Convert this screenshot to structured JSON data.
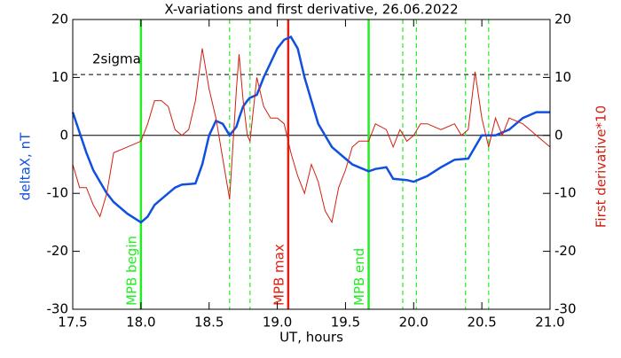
{
  "chart_data": {
    "type": "line",
    "title": "X-variations and first derivative, 26.06.2022",
    "xlabel": "UT, hours",
    "ylabel": "deltaX, nT",
    "y2label": "First derivative*10",
    "x": [
      17.5,
      17.55,
      17.6,
      17.65,
      17.7,
      17.75,
      17.8,
      17.9,
      18.0,
      18.05,
      18.1,
      18.15,
      18.2,
      18.25,
      18.3,
      18.35,
      18.4,
      18.45,
      18.5,
      18.55,
      18.6,
      18.65,
      18.7,
      18.72,
      18.75,
      18.78,
      18.8,
      18.85,
      18.9,
      18.95,
      19.0,
      19.05,
      19.1,
      19.15,
      19.2,
      19.25,
      19.3,
      19.35,
      19.4,
      19.45,
      19.5,
      19.55,
      19.6,
      19.67,
      19.72,
      19.8,
      19.85,
      19.9,
      19.95,
      20.0,
      20.05,
      20.1,
      20.2,
      20.3,
      20.35,
      20.4,
      20.45,
      20.5,
      20.55,
      20.6,
      20.65,
      20.7,
      20.8,
      20.9,
      21.0
    ],
    "series": [
      {
        "name": "deltaX",
        "color": "#1050e0",
        "values": [
          4,
          0.5,
          -3,
          -6,
          -8,
          -10,
          -11.5,
          -13.5,
          -15,
          -14,
          -12,
          -11,
          -10,
          -9,
          -8.5,
          -8.4,
          -8.3,
          -5,
          0,
          2.5,
          2,
          0,
          1.5,
          3,
          5,
          6,
          6.5,
          7,
          10,
          12.5,
          15,
          16.5,
          17,
          15,
          10,
          6,
          2,
          0,
          -2,
          -3,
          -4,
          -5,
          -5.5,
          -6.2,
          -5.8,
          -5.5,
          -7.5,
          -7.6,
          -7.7,
          -8,
          -7.5,
          -7,
          -5.5,
          -4.2,
          -4.1,
          -4,
          -2,
          0,
          0,
          0,
          0.5,
          1,
          3,
          4,
          4
        ]
      },
      {
        "name": "derivative",
        "color": "#d02010",
        "axis": "y2",
        "values": [
          -5,
          -9,
          -9,
          -12,
          -14,
          -10,
          -3,
          -2,
          -1,
          2,
          6,
          6,
          5,
          1,
          0,
          1,
          6,
          15,
          8,
          3,
          -4,
          -11,
          8,
          14,
          6,
          0,
          -1,
          10,
          5,
          3,
          3,
          2,
          -3,
          -7,
          -10,
          -5,
          -8,
          -13,
          -15,
          -9,
          -6,
          -2,
          -1,
          -1,
          2,
          1,
          -2,
          1,
          -1,
          0,
          2,
          2,
          1,
          2,
          0,
          1,
          11,
          3,
          -2,
          3,
          0,
          3,
          2,
          0,
          -2
        ]
      }
    ],
    "xlim": [
      17.5,
      21.0
    ],
    "xticks": [
      17.5,
      {
        "value": 18.0,
        "label": "18.0"
      },
      18.5,
      {
        "value": 19.0,
        "label": "19.0"
      },
      19.5,
      {
        "value": 20.0,
        "label": "20.0"
      },
      20.5,
      {
        "value": 21.0,
        "label": "21.0"
      }
    ],
    "ylim": [
      -30,
      20
    ],
    "yticks": [
      20,
      10,
      0,
      -10,
      -20,
      -30
    ],
    "y2lim": [
      -30,
      20
    ],
    "y2ticks": [
      20,
      10,
      0,
      -10,
      -20,
      -30
    ],
    "vlines": [
      {
        "x": 18.0,
        "color": "#22ee22",
        "label": "MPB begin"
      },
      {
        "x": 18.65,
        "color": "#22ee22",
        "dashed": true
      },
      {
        "x": 18.8,
        "color": "#22ee22",
        "dashed": true
      },
      {
        "x": 19.08,
        "color": "#e02010",
        "label": "MPB max"
      },
      {
        "x": 19.67,
        "color": "#22ee22",
        "label": "MPB end"
      },
      {
        "x": 19.92,
        "color": "#22ee22",
        "dashed": true
      },
      {
        "x": 20.02,
        "color": "#22ee22",
        "dashed": true
      },
      {
        "x": 20.38,
        "color": "#22ee22",
        "dashed": true
      },
      {
        "x": 20.55,
        "color": "#22ee22",
        "dashed": true
      }
    ],
    "hlines": [
      {
        "y": 10.5,
        "dashed": true,
        "label": "2sigma"
      },
      {
        "y": 0
      }
    ]
  }
}
